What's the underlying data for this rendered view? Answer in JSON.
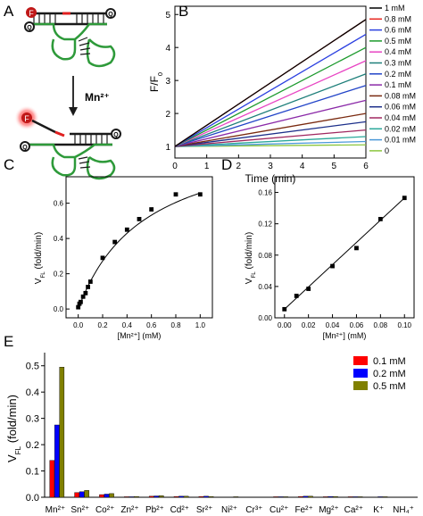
{
  "panel_labels": {
    "a": "A",
    "b": "B",
    "c": "C",
    "d": "D",
    "e": "E"
  },
  "schematic": {
    "ion_label": "Mn²⁺",
    "fluor_label": "F",
    "quencher_label": "Q",
    "colors": {
      "strand": "#2e9a3a",
      "dark": "#1a1a1a",
      "red": "#e02020"
    }
  },
  "chart_data": [
    {
      "id": "B",
      "type": "line",
      "xlabel": "Time (min)",
      "ylabel": "F/F",
      "ylabel_sub": "0",
      "xlim": [
        0,
        6
      ],
      "ylim": [
        0.65,
        5.25
      ],
      "xticks": [
        0,
        1,
        2,
        3,
        4,
        5,
        6
      ],
      "yticks": [
        1,
        2,
        3,
        4,
        5
      ],
      "legend_position": "right",
      "x": [
        0,
        6
      ],
      "series": [
        {
          "name": "1 mM",
          "values": [
            1.0,
            4.85
          ],
          "color": "#000000"
        },
        {
          "name": "0.8 mM",
          "values": [
            1.0,
            4.85
          ],
          "color": "#e8251d"
        },
        {
          "name": "0.6 mM",
          "values": [
            1.0,
            4.4
          ],
          "color": "#2a3fe0"
        },
        {
          "name": "0.5 mM",
          "values": [
            1.0,
            4.0
          ],
          "color": "#1c9a2d"
        },
        {
          "name": "0.4 mM",
          "values": [
            1.0,
            3.6
          ],
          "color": "#e845c3"
        },
        {
          "name": "0.3 mM",
          "values": [
            1.0,
            3.2
          ],
          "color": "#1e7f7a"
        },
        {
          "name": "0.2 mM",
          "values": [
            1.0,
            2.85
          ],
          "color": "#2244c8"
        },
        {
          "name": "0.1 mM",
          "values": [
            1.0,
            2.4
          ],
          "color": "#8b2aa8"
        },
        {
          "name": "0.08 mM",
          "values": [
            1.0,
            2.0
          ],
          "color": "#7a2a10"
        },
        {
          "name": "0.06 mM",
          "values": [
            1.0,
            1.75
          ],
          "color": "#1c2f8a"
        },
        {
          "name": "0.04 mM",
          "values": [
            1.0,
            1.5
          ],
          "color": "#a02860"
        },
        {
          "name": "0.02 mM",
          "values": [
            1.0,
            1.3
          ],
          "color": "#2aa89a"
        },
        {
          "name": "0.01 mM",
          "values": [
            1.0,
            1.15
          ],
          "color": "#4a98d8"
        },
        {
          "name": "0",
          "values": [
            1.0,
            1.05
          ],
          "color": "#8cc63f"
        }
      ]
    },
    {
      "id": "C",
      "type": "scatter",
      "xlabel": "[Mn²⁺] (mM)",
      "ylabel": "V",
      "ylabel_sub": "FL",
      "ylabel_suffix": " (fold/min)",
      "xlim": [
        -0.1,
        1.1
      ],
      "ylim": [
        -0.05,
        0.75
      ],
      "xticks": [
        0.0,
        0.2,
        0.4,
        0.6,
        0.8,
        1.0
      ],
      "xtick_labels": [
        "0.0",
        "0.2",
        "0.4",
        "0.6",
        "0.8",
        "1.0"
      ],
      "yticks": [
        0.0,
        0.2,
        0.4,
        0.6
      ],
      "ytick_labels": [
        "0.0",
        "0.2",
        "0.4",
        "0.6"
      ],
      "x": [
        0,
        0.01,
        0.02,
        0.04,
        0.06,
        0.08,
        0.1,
        0.2,
        0.3,
        0.4,
        0.5,
        0.6,
        0.8,
        1.0
      ],
      "y": [
        0.01,
        0.03,
        0.04,
        0.07,
        0.09,
        0.125,
        0.155,
        0.29,
        0.38,
        0.45,
        0.51,
        0.565,
        0.65,
        0.65
      ],
      "fit": {
        "type": "saturation",
        "vmax": 1.02,
        "k": 0.55
      }
    },
    {
      "id": "D",
      "type": "scatter",
      "xlabel": "[Mn²⁺] (mM)",
      "ylabel": "V",
      "ylabel_sub": "FL",
      "ylabel_suffix": " (fold/min)",
      "xlim": [
        -0.008,
        0.108
      ],
      "ylim": [
        0.0,
        0.18
      ],
      "xticks": [
        0.0,
        0.02,
        0.04,
        0.06,
        0.08,
        0.1
      ],
      "xtick_labels": [
        "0.00",
        "0.02",
        "0.04",
        "0.06",
        "0.08",
        "0.10"
      ],
      "yticks": [
        0.0,
        0.04,
        0.08,
        0.12,
        0.16
      ],
      "ytick_labels": [
        "0.00",
        "0.04",
        "0.08",
        "0.12",
        "0.16"
      ],
      "x": [
        0,
        0.01,
        0.02,
        0.04,
        0.06,
        0.08,
        0.1
      ],
      "y": [
        0.011,
        0.028,
        0.037,
        0.066,
        0.089,
        0.126,
        0.153
      ],
      "fit": {
        "type": "linear",
        "slope": 1.42,
        "intercept": 0.011
      }
    },
    {
      "id": "E",
      "type": "bar",
      "xlabel": "",
      "ylabel": "V",
      "ylabel_sub": "FL",
      "ylabel_suffix": "  (fold/min)",
      "ylim": [
        0,
        0.55
      ],
      "yticks": [
        0.0,
        0.1,
        0.2,
        0.3,
        0.4,
        0.5
      ],
      "ytick_labels": [
        "0.0",
        "0.1",
        "0.2",
        "0.3",
        "0.4",
        "0.5"
      ],
      "legend_position": "top-right",
      "categories": [
        "Mn²⁺",
        "Sn²⁺",
        "Co²⁺",
        "Zn²⁺",
        "Pb²⁺",
        "Cd²⁺",
        "Sr²⁺",
        "Ni²⁺",
        "Cr³⁺",
        "Cu²⁺",
        "Fe²⁺",
        "Mg²⁺",
        "Ca²⁺",
        "K⁺",
        "NH₄⁺"
      ],
      "series": [
        {
          "name": "0.1 mM",
          "color": "#ff0000",
          "values": [
            0.14,
            0.018,
            0.01,
            0.002,
            0.004,
            0.003,
            0.003,
            0.001,
            0.001,
            0.002,
            0.003,
            0.002,
            0.002,
            0.001,
            0.001
          ]
        },
        {
          "name": "0.2 mM",
          "color": "#0000ff",
          "values": [
            0.275,
            0.021,
            0.012,
            0.002,
            0.005,
            0.004,
            0.004,
            0.001,
            0.001,
            0.002,
            0.004,
            0.003,
            0.002,
            0.002,
            0.001
          ]
        },
        {
          "name": "0.5 mM",
          "color": "#808000",
          "values": [
            0.495,
            0.026,
            0.014,
            0.003,
            0.006,
            0.004,
            0.003,
            0.002,
            0.001,
            0.002,
            0.004,
            0.003,
            0.002,
            0.002,
            0.001
          ]
        }
      ]
    }
  ]
}
